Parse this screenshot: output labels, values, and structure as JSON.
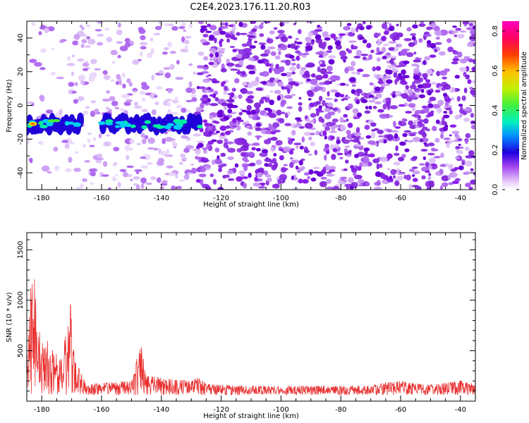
{
  "title": "C2E4.2023.176.11.20.R03",
  "chart_data": [
    {
      "type": "heatmap",
      "name": "spectrogram",
      "xlabel": "Height of straight line (km)",
      "ylabel": "Frequency (Hz)",
      "xlim": [
        -185,
        -35
      ],
      "ylim": [
        -50,
        50
      ],
      "xticks": [
        -180,
        -160,
        -140,
        -120,
        -100,
        -80,
        -60,
        -40
      ],
      "yticks": [
        -40,
        -20,
        0,
        20,
        40
      ],
      "xticklabels": [
        "-180",
        "-160",
        "-140",
        "-120",
        "-100",
        "-80",
        "-60",
        "-40"
      ],
      "yticklabels": [
        "-40",
        "-20",
        "0",
        "20",
        "40"
      ],
      "signal_band": {
        "x_start": -185,
        "x_end": -127,
        "freq_center": -11,
        "freq_halfwidth": 5
      },
      "colorbar": {
        "label": "Normalized spectral amplitude",
        "range": [
          0.0,
          0.85
        ],
        "ticks": [
          0.0,
          0.2,
          0.4,
          0.6,
          0.8
        ],
        "ticklabels": [
          "0.0",
          "0.2",
          "0.4",
          "0.6",
          "0.8"
        ],
        "colors": [
          "#ffffff",
          "#e6c8f8",
          "#a040f0",
          "#2000e0",
          "#0090ff",
          "#00f0c0",
          "#40f040",
          "#c0f000",
          "#ffc000",
          "#ff4000",
          "#ff0060",
          "#ff00c0"
        ]
      }
    },
    {
      "type": "line",
      "name": "snr",
      "xlabel": "Height of straight line (km)",
      "ylabel": "SNR (10 * v/v)",
      "xlim": [
        -185,
        -35
      ],
      "ylim": [
        0,
        1670
      ],
      "xticks": [
        -180,
        -160,
        -140,
        -120,
        -100,
        -80,
        -60,
        -40
      ],
      "yticks": [
        500,
        1000,
        1500
      ],
      "xticklabels": [
        "-180",
        "-160",
        "-140",
        "-120",
        "-100",
        "-80",
        "-60",
        "-40"
      ],
      "yticklabels": [
        "500",
        "1000",
        "1500"
      ],
      "line_color": "#e83030",
      "x": [
        -185,
        -184,
        -183,
        -182.5,
        -182,
        -181,
        -180,
        -179,
        -178,
        -177,
        -176,
        -175,
        -174,
        -173,
        -172,
        -171,
        -170.5,
        -170,
        -169,
        -168,
        -167,
        -166,
        -165,
        -160,
        -155,
        -150,
        -149,
        -148,
        -147,
        -146,
        -145,
        -140,
        -135,
        -130,
        -128,
        -126,
        -125,
        -120,
        -110,
        -100,
        -90,
        -80,
        -70,
        -65,
        -60,
        -55,
        -50,
        -45,
        -40,
        -35
      ],
      "y": [
        450,
        900,
        1670,
        1250,
        950,
        700,
        650,
        500,
        600,
        450,
        550,
        480,
        400,
        520,
        650,
        800,
        1050,
        750,
        400,
        350,
        300,
        220,
        160,
        180,
        190,
        200,
        290,
        460,
        600,
        420,
        250,
        230,
        210,
        200,
        230,
        200,
        170,
        160,
        150,
        150,
        150,
        150,
        150,
        180,
        200,
        170,
        160,
        180,
        200,
        170
      ],
      "noise_floor": 60,
      "noise_amplitude": 150
    }
  ]
}
